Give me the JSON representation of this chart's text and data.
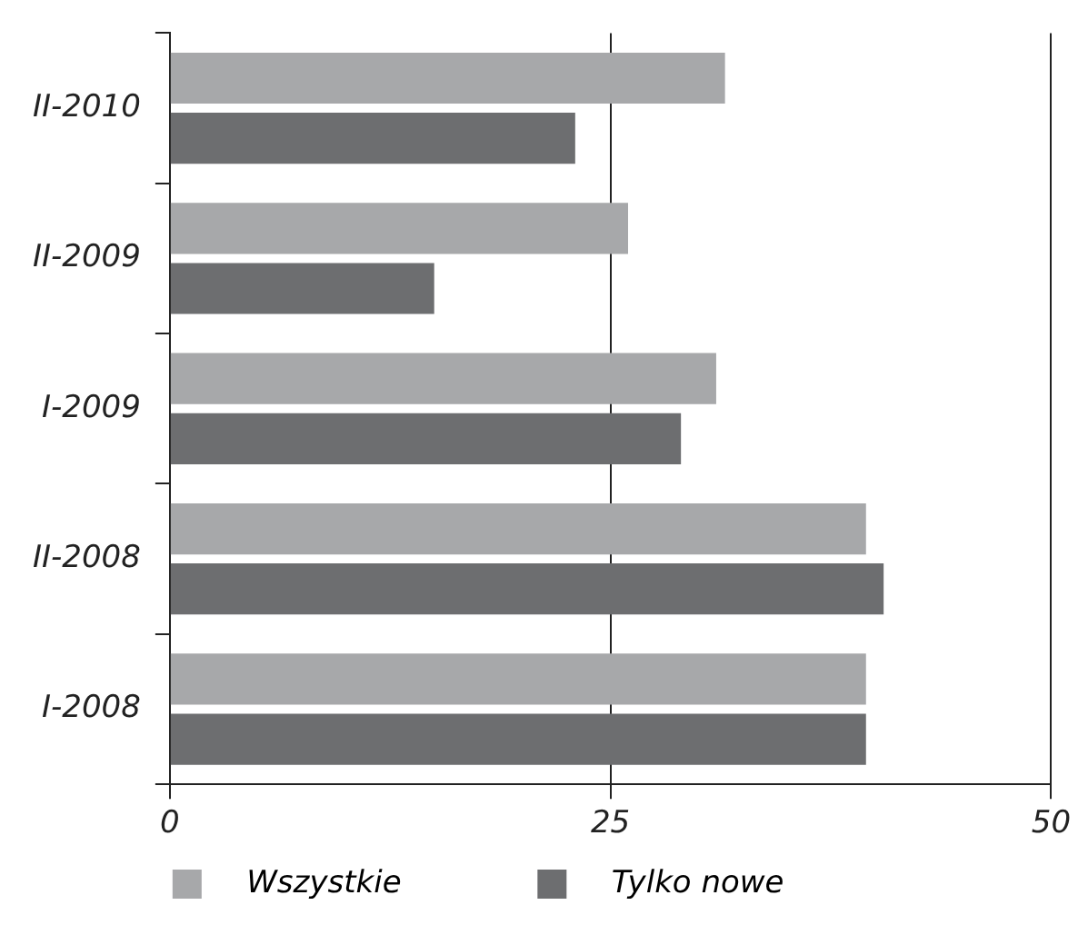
{
  "chart_data": {
    "type": "bar",
    "orientation": "horizontal",
    "categories": [
      "II-2010",
      "II-2009",
      "I-2009",
      "II-2008",
      "I-2008"
    ],
    "series": [
      {
        "name": "Wszystkie",
        "color": "#a7a8aa",
        "values": [
          31.5,
          26,
          31,
          39.5,
          39.5
        ]
      },
      {
        "name": "Tylko nowe",
        "color": "#6d6e70",
        "values": [
          23,
          15,
          29,
          40.5,
          39.5
        ]
      }
    ],
    "xlim": [
      0,
      50
    ],
    "xticks": [
      0,
      25,
      50
    ],
    "grid": "x",
    "legend": "bottom"
  }
}
